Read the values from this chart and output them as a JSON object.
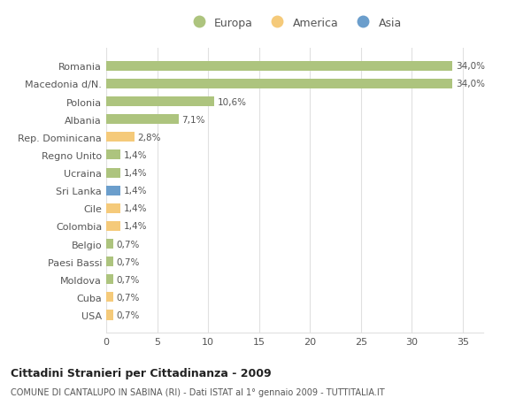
{
  "countries": [
    "Romania",
    "Macedonia d/N.",
    "Polonia",
    "Albania",
    "Rep. Dominicana",
    "Regno Unito",
    "Ucraina",
    "Sri Lanka",
    "Cile",
    "Colombia",
    "Belgio",
    "Paesi Bassi",
    "Moldova",
    "Cuba",
    "USA"
  ],
  "values": [
    34.0,
    34.0,
    10.6,
    7.1,
    2.8,
    1.4,
    1.4,
    1.4,
    1.4,
    1.4,
    0.7,
    0.7,
    0.7,
    0.7,
    0.7
  ],
  "labels": [
    "34,0%",
    "34,0%",
    "10,6%",
    "7,1%",
    "2,8%",
    "1,4%",
    "1,4%",
    "1,4%",
    "1,4%",
    "1,4%",
    "0,7%",
    "0,7%",
    "0,7%",
    "0,7%",
    "0,7%"
  ],
  "continents": [
    "Europa",
    "Europa",
    "Europa",
    "Europa",
    "America",
    "Europa",
    "Europa",
    "Asia",
    "America",
    "America",
    "Europa",
    "Europa",
    "Europa",
    "America",
    "America"
  ],
  "colors": {
    "Europa": "#adc47e",
    "America": "#f5ca7a",
    "Asia": "#6b9ecc"
  },
  "legend_order": [
    "Europa",
    "America",
    "Asia"
  ],
  "title": "Cittadini Stranieri per Cittadinanza - 2009",
  "subtitle": "COMUNE DI CANTALUPO IN SABINA (RI) - Dati ISTAT al 1° gennaio 2009 - TUTTITALIA.IT",
  "xlim": [
    0,
    37
  ],
  "xticks": [
    0,
    5,
    10,
    15,
    20,
    25,
    30,
    35
  ],
  "bg_color": "#ffffff",
  "grid_color": "#e0e0e0",
  "bar_height": 0.55
}
